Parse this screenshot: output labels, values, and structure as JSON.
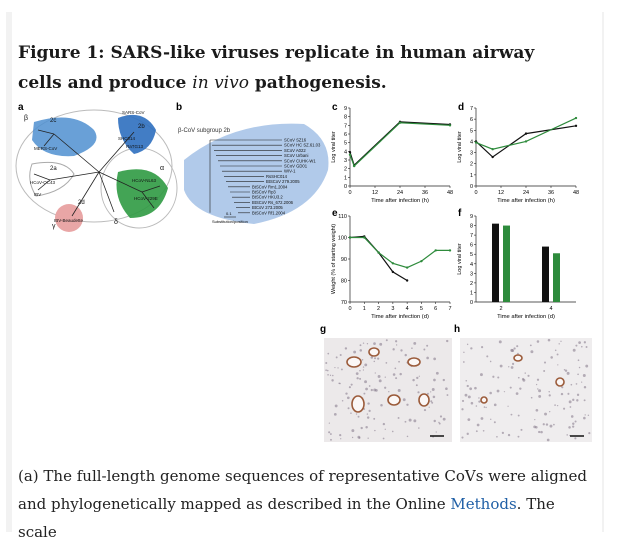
{
  "figure": {
    "title_prefix": "Figure 1: SARS-like viruses replicate in human airway cells and produce ",
    "title_italic": "in vivo",
    "title_suffix": " pathogenesis."
  },
  "panels": {
    "a": "a",
    "b": "b",
    "c": "c",
    "d": "d",
    "e": "e",
    "f": "f",
    "g": "g",
    "h": "h"
  },
  "tree_a": {
    "labels": [
      "β",
      "α",
      "γ",
      "δ",
      "2b",
      "2c",
      "2a",
      "2d",
      "MERS-CoV",
      "SARS-CoV",
      "HCoV-OC43",
      "HCoV-229E",
      "HCoV-NL63",
      "IBV",
      "SHC014",
      "RaTG13",
      "IBV-Beaudette"
    ]
  },
  "tree_b": {
    "header": "β-CoV subgroup 2b",
    "leaves": [
      "SCoV SZ16",
      "SCoV HC SZ.61.03",
      "SCoV A022",
      "SCoV Urbani",
      "SCoV CUHK-W1",
      "SCoV GD01",
      "WIV-1",
      "RsSHC014",
      "BtSCoV 279.2005",
      "BtSCoV Rm1.2004",
      "BtSCoV Rp3",
      "BtSCoV HKU3.2",
      "BtSCoV Rs_672.2006",
      "BtCoV 273.2005",
      "BtSCoV Rf1.2004"
    ],
    "scale": "0.1",
    "scale_label": "Substitution/position"
  },
  "chart_data": [
    {
      "panel": "c",
      "type": "line",
      "xlabel": "Time after infection (h)",
      "ylabel": "Log viral titer",
      "xlim": [
        0,
        48
      ],
      "ylim": [
        0,
        9
      ],
      "xticks": [
        0,
        12,
        24,
        36,
        48
      ],
      "yticks": [
        0,
        1,
        2,
        3,
        4,
        5,
        6,
        7,
        8,
        9
      ],
      "series": [
        {
          "color": "#111111",
          "x": [
            0,
            2,
            24,
            48
          ],
          "y": [
            3.9,
            2.4,
            7.4,
            7.1
          ]
        },
        {
          "color": "#2e8b3c",
          "x": [
            0,
            2,
            24,
            48
          ],
          "y": [
            3.6,
            2.3,
            7.3,
            7.0
          ]
        }
      ]
    },
    {
      "panel": "d",
      "type": "line",
      "xlabel": "Time after infection (h)",
      "ylabel": "Log viral titer",
      "xlim": [
        0,
        48
      ],
      "ylim": [
        0,
        7
      ],
      "xticks": [
        0,
        12,
        24,
        36,
        48
      ],
      "yticks": [
        0,
        1,
        2,
        3,
        4,
        5,
        6,
        7
      ],
      "series": [
        {
          "color": "#111111",
          "x": [
            0,
            8,
            24,
            48
          ],
          "y": [
            4.0,
            2.6,
            4.7,
            5.4
          ]
        },
        {
          "color": "#2e8b3c",
          "x": [
            0,
            8,
            24,
            48
          ],
          "y": [
            3.9,
            3.3,
            4.0,
            6.1
          ]
        }
      ]
    },
    {
      "panel": "e",
      "type": "line",
      "xlabel": "Time after infection (d)",
      "ylabel": "Weight (% of starting weight)",
      "xlim": [
        0,
        7
      ],
      "ylim": [
        70,
        110
      ],
      "xticks": [
        0,
        1,
        2,
        3,
        4,
        5,
        6,
        7
      ],
      "yticks": [
        70,
        80,
        90,
        100,
        110
      ],
      "series": [
        {
          "color": "#111111",
          "x": [
            0,
            1,
            2,
            3,
            4
          ],
          "y": [
            100,
            100.5,
            93,
            84,
            80
          ]
        },
        {
          "color": "#2e8b3c",
          "x": [
            0,
            1,
            2,
            3,
            4,
            5,
            6,
            7
          ],
          "y": [
            100,
            100,
            93,
            88,
            86,
            89,
            94,
            94
          ]
        }
      ]
    },
    {
      "panel": "f",
      "type": "bar",
      "xlabel": "Time after infection (d)",
      "ylabel": "Log viral titer",
      "categories": [
        "2",
        "4"
      ],
      "ylim": [
        0,
        9
      ],
      "yticks": [
        0,
        1,
        2,
        3,
        4,
        5,
        6,
        7,
        8,
        9
      ],
      "series": [
        {
          "color": "#111111",
          "values": [
            8.2,
            5.8
          ]
        },
        {
          "color": "#2e8b3c",
          "values": [
            8.0,
            5.1
          ]
        }
      ]
    }
  ]
}
